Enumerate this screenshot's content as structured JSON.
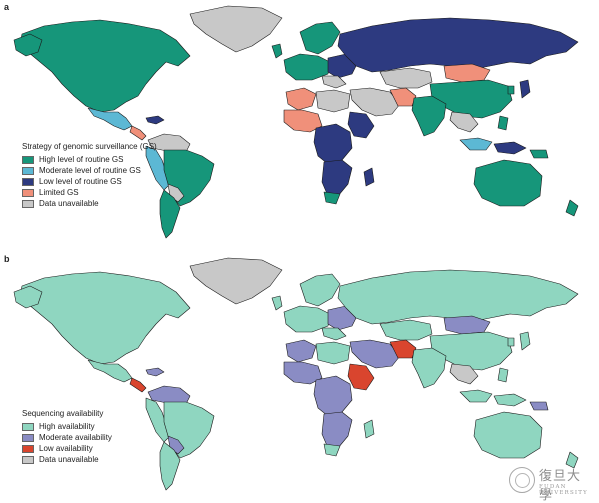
{
  "panel_a": {
    "label": "a",
    "legend": {
      "title": "Strategy of genomic surveillance (GS)",
      "items": [
        {
          "label": "High level of routine GS",
          "color": "#16967a"
        },
        {
          "label": "Moderate level of routine GS",
          "color": "#5cb8d4"
        },
        {
          "label": "Low level of routine GS",
          "color": "#2d3a80"
        },
        {
          "label": "Limited GS",
          "color": "#f0907a"
        },
        {
          "label": "Data unavailable",
          "color": "#c8c8c8"
        }
      ]
    }
  },
  "panel_b": {
    "label": "b",
    "legend": {
      "title": "Sequencing availability",
      "items": [
        {
          "label": "High availability",
          "color": "#8fd6c0"
        },
        {
          "label": "Moderate availability",
          "color": "#8a8cc4"
        },
        {
          "label": "Low availability",
          "color": "#d9452e"
        },
        {
          "label": "Data unavailable",
          "color": "#c8c8c8"
        }
      ]
    }
  },
  "watermark": {
    "chinese": "復旦大學",
    "english": "FUDAN UNIVERSITY"
  }
}
